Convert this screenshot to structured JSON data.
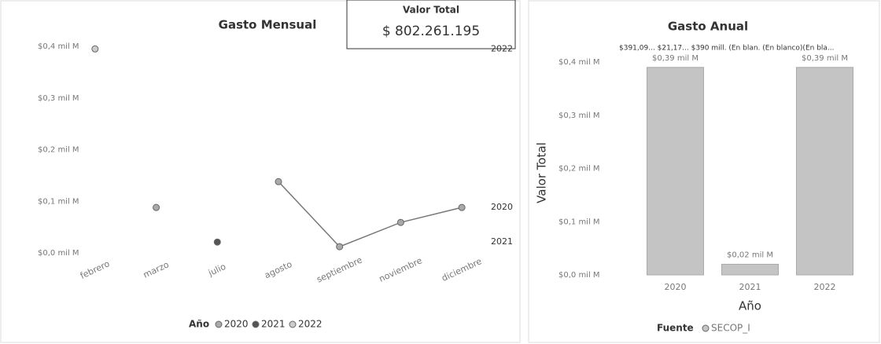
{
  "card": {
    "title": "Valor Total",
    "value": "$ 802.261.195"
  },
  "chart_data": [
    {
      "type": "line",
      "title": "Gasto Mensual",
      "categories": [
        "febrero",
        "marzo",
        "julio",
        "agosto",
        "septiembre",
        "noviembre",
        "diciembre"
      ],
      "series": [
        {
          "name": "2020",
          "color": "#a9a9a9",
          "values": [
            null,
            0.088,
            null,
            0.138,
            0.012,
            0.059,
            0.088
          ]
        },
        {
          "name": "2021",
          "color": "#555555",
          "values": [
            null,
            null,
            0.021,
            null,
            null,
            null,
            null
          ]
        },
        {
          "name": "2022",
          "color": "#cccccc",
          "values": [
            0.395,
            null,
            null,
            null,
            null,
            null,
            null
          ]
        }
      ],
      "legend_title": "Año",
      "ylim": [
        0,
        0.4
      ],
      "yticks": [
        {
          "value": 0,
          "label": "$0,0 mil M"
        },
        {
          "value": 0.1,
          "label": "$0,1 mil M"
        },
        {
          "value": 0.2,
          "label": "$0,2 mil M"
        },
        {
          "value": 0.3,
          "label": "$0,3 mil M"
        },
        {
          "value": 0.4,
          "label": "$0,4 mil M"
        }
      ],
      "grid": false
    },
    {
      "type": "bar",
      "title": "Gasto Anual",
      "annotation": "$391,09... $21,17... $390 mill. (En blan. (En blanco)(En bla...",
      "x_label": "Año",
      "y_label": "Valor Total",
      "categories": [
        "2020",
        "2021",
        "2022"
      ],
      "series": [
        {
          "name": "SECOP_I",
          "color": "#c4c4c4",
          "values": [
            0.39,
            0.02,
            0.39
          ],
          "value_labels": [
            "$0,39 mil M",
            "$0,02 mil M",
            "$0,39 mil M"
          ]
        }
      ],
      "legend_title": "Fuente",
      "ylim": [
        0,
        0.4
      ],
      "yticks": [
        {
          "value": 0,
          "label": "$0,0 mil M"
        },
        {
          "value": 0.1,
          "label": "$0,1 mil M"
        },
        {
          "value": 0.2,
          "label": "$0,2 mil M"
        },
        {
          "value": 0.3,
          "label": "$0,3 mil M"
        },
        {
          "value": 0.4,
          "label": "$0,4 mil M"
        }
      ],
      "grid": false
    }
  ]
}
